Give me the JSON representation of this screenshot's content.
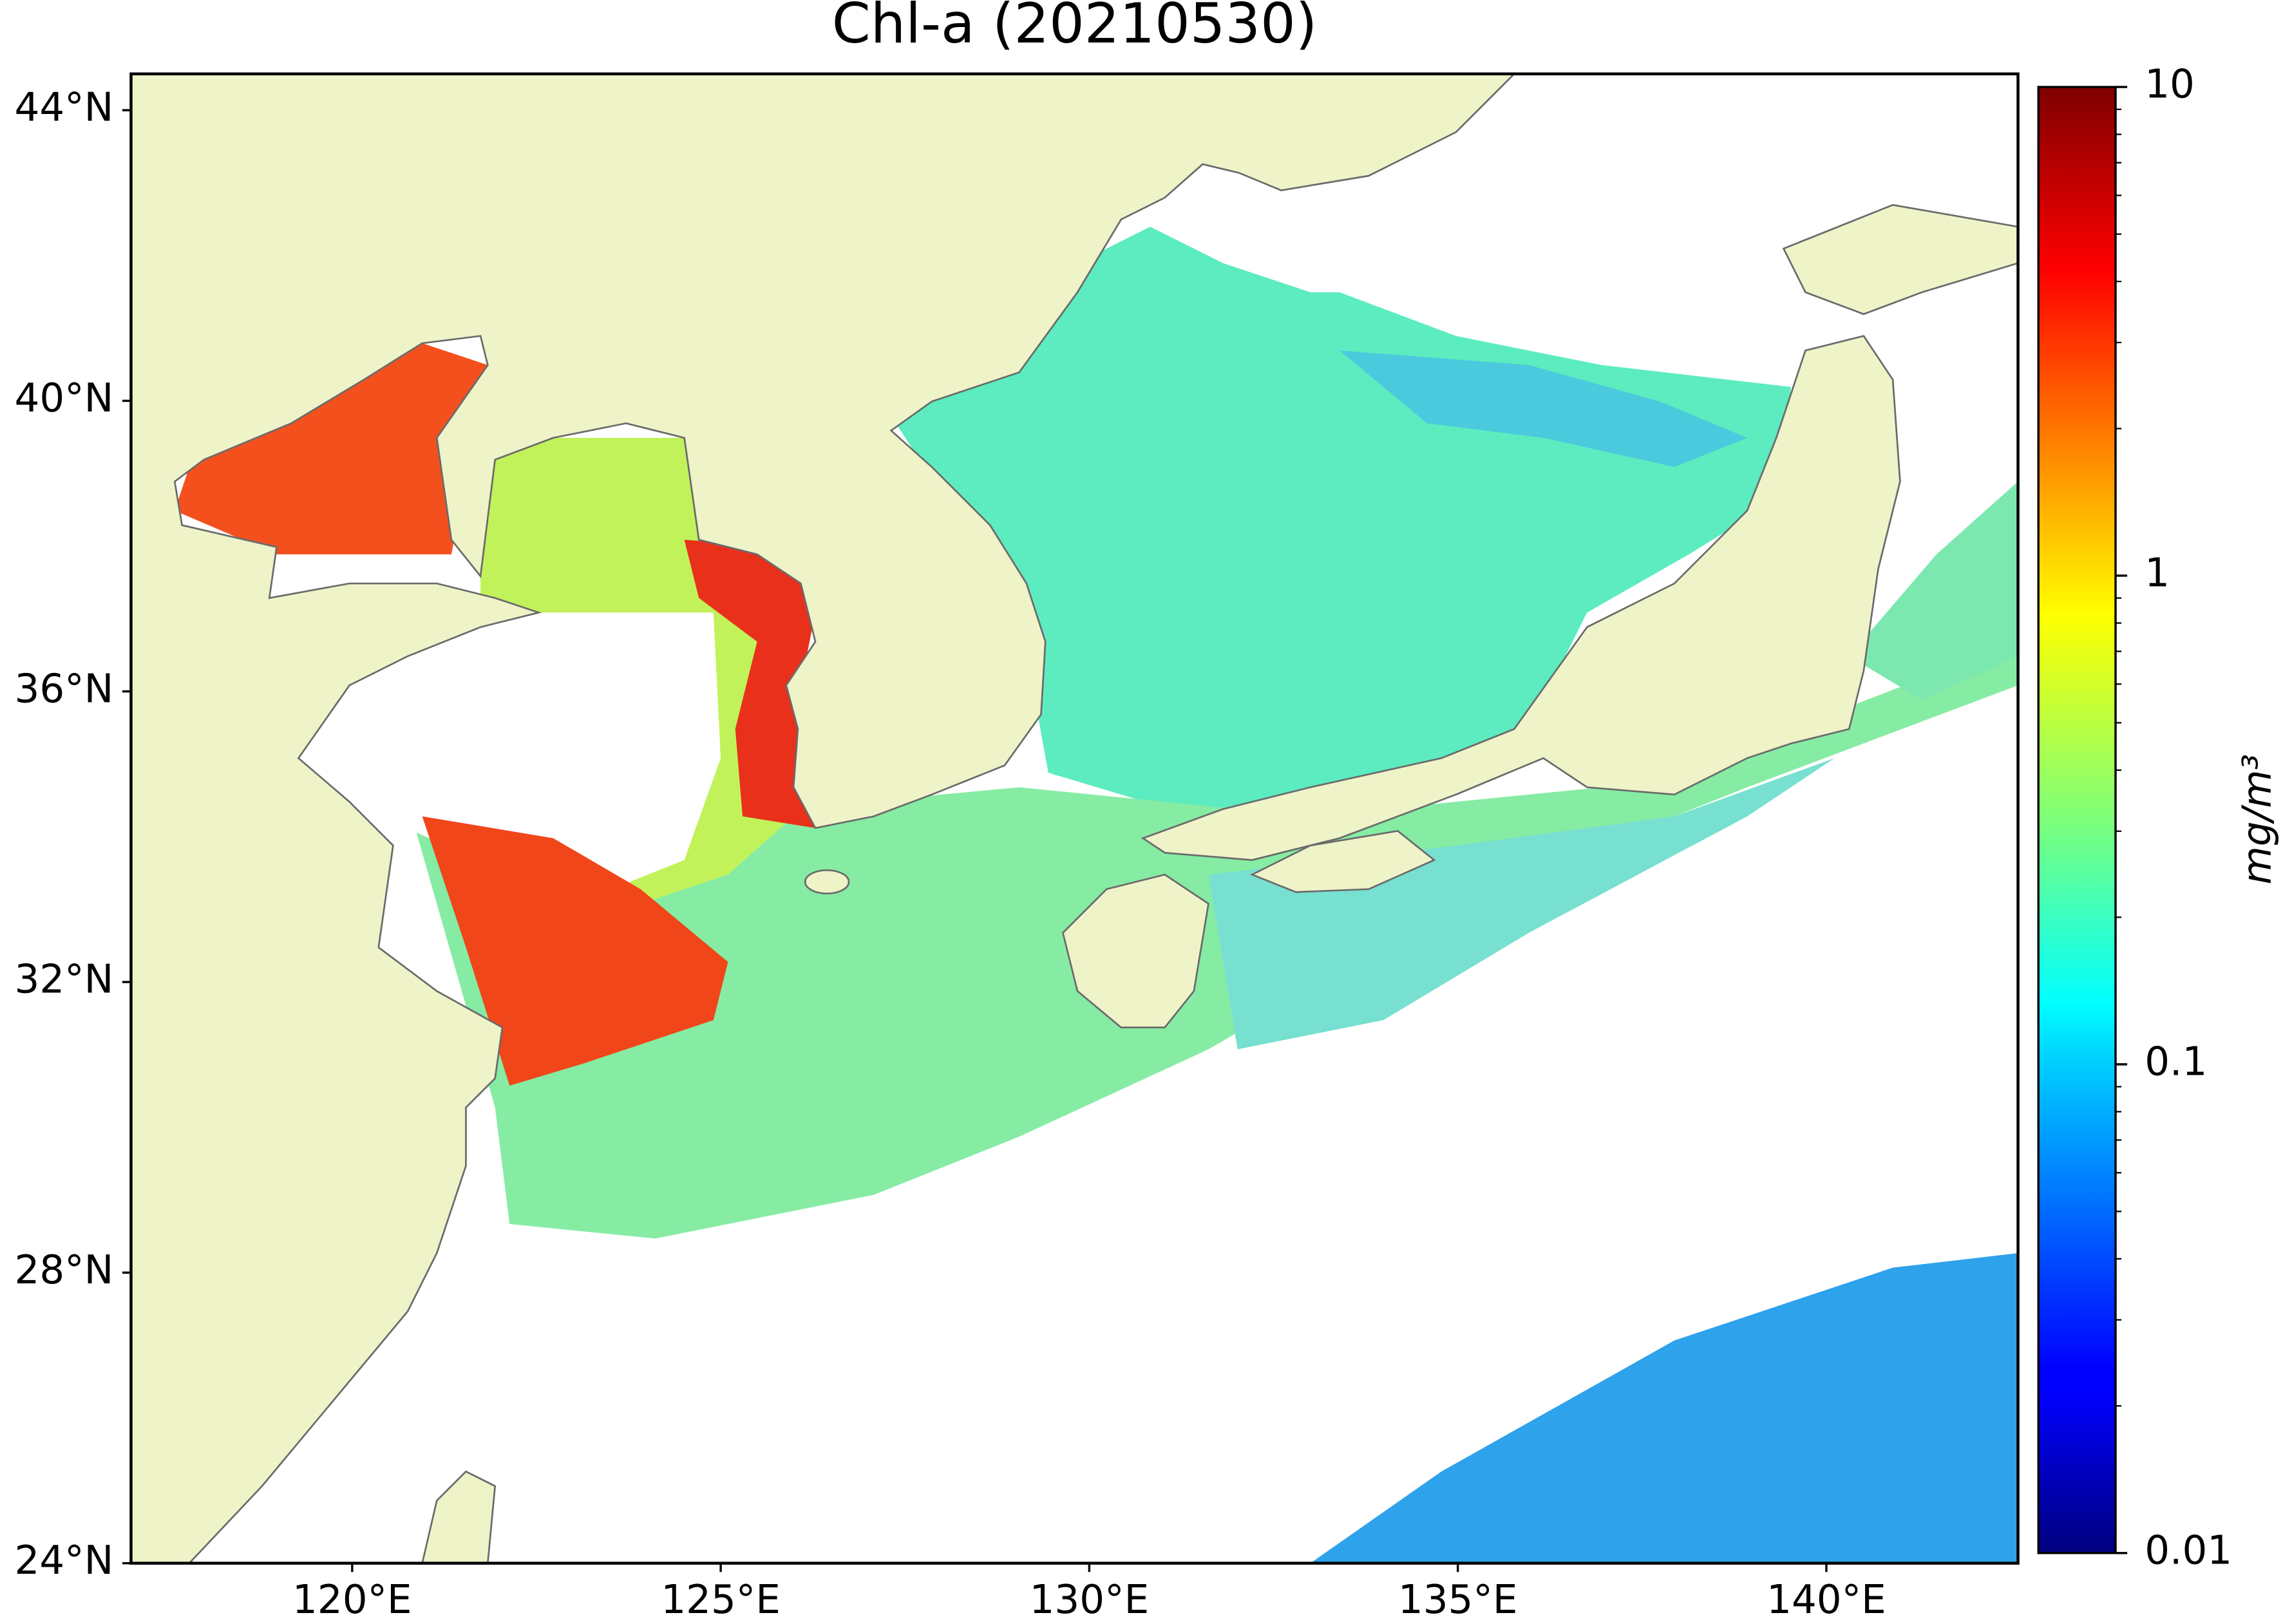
{
  "chart_data": {
    "type": "map",
    "title": "Chl-a (20210530)",
    "xlim": [
      117,
      142.6
    ],
    "ylim": [
      24,
      44.5
    ],
    "xticks": [
      {
        "value": 120,
        "label": "120°E"
      },
      {
        "value": 125,
        "label": "125°E"
      },
      {
        "value": 130,
        "label": "130°E"
      },
      {
        "value": 135,
        "label": "135°E"
      },
      {
        "value": 140,
        "label": "140°E"
      }
    ],
    "yticks": [
      {
        "value": 24,
        "label": "24°N"
      },
      {
        "value": 28,
        "label": "28°N"
      },
      {
        "value": 32,
        "label": "32°N"
      },
      {
        "value": 36,
        "label": "36°N"
      },
      {
        "value": 40,
        "label": "40°N"
      },
      {
        "value": 44,
        "label": "44°N"
      }
    ],
    "colorbar": {
      "label": "mg/m³",
      "scale": "log",
      "colormap": "jet",
      "lim": [
        0.01,
        10
      ],
      "ticks": [
        0.01,
        0.1,
        1,
        10
      ],
      "minor_ticks": [
        0.02,
        0.03,
        0.04,
        0.05,
        0.06,
        0.07,
        0.08,
        0.09,
        0.2,
        0.3,
        0.4,
        0.5,
        0.6,
        0.7,
        0.8,
        0.9,
        2,
        3,
        4,
        5,
        6,
        7,
        8,
        9
      ]
    }
  }
}
